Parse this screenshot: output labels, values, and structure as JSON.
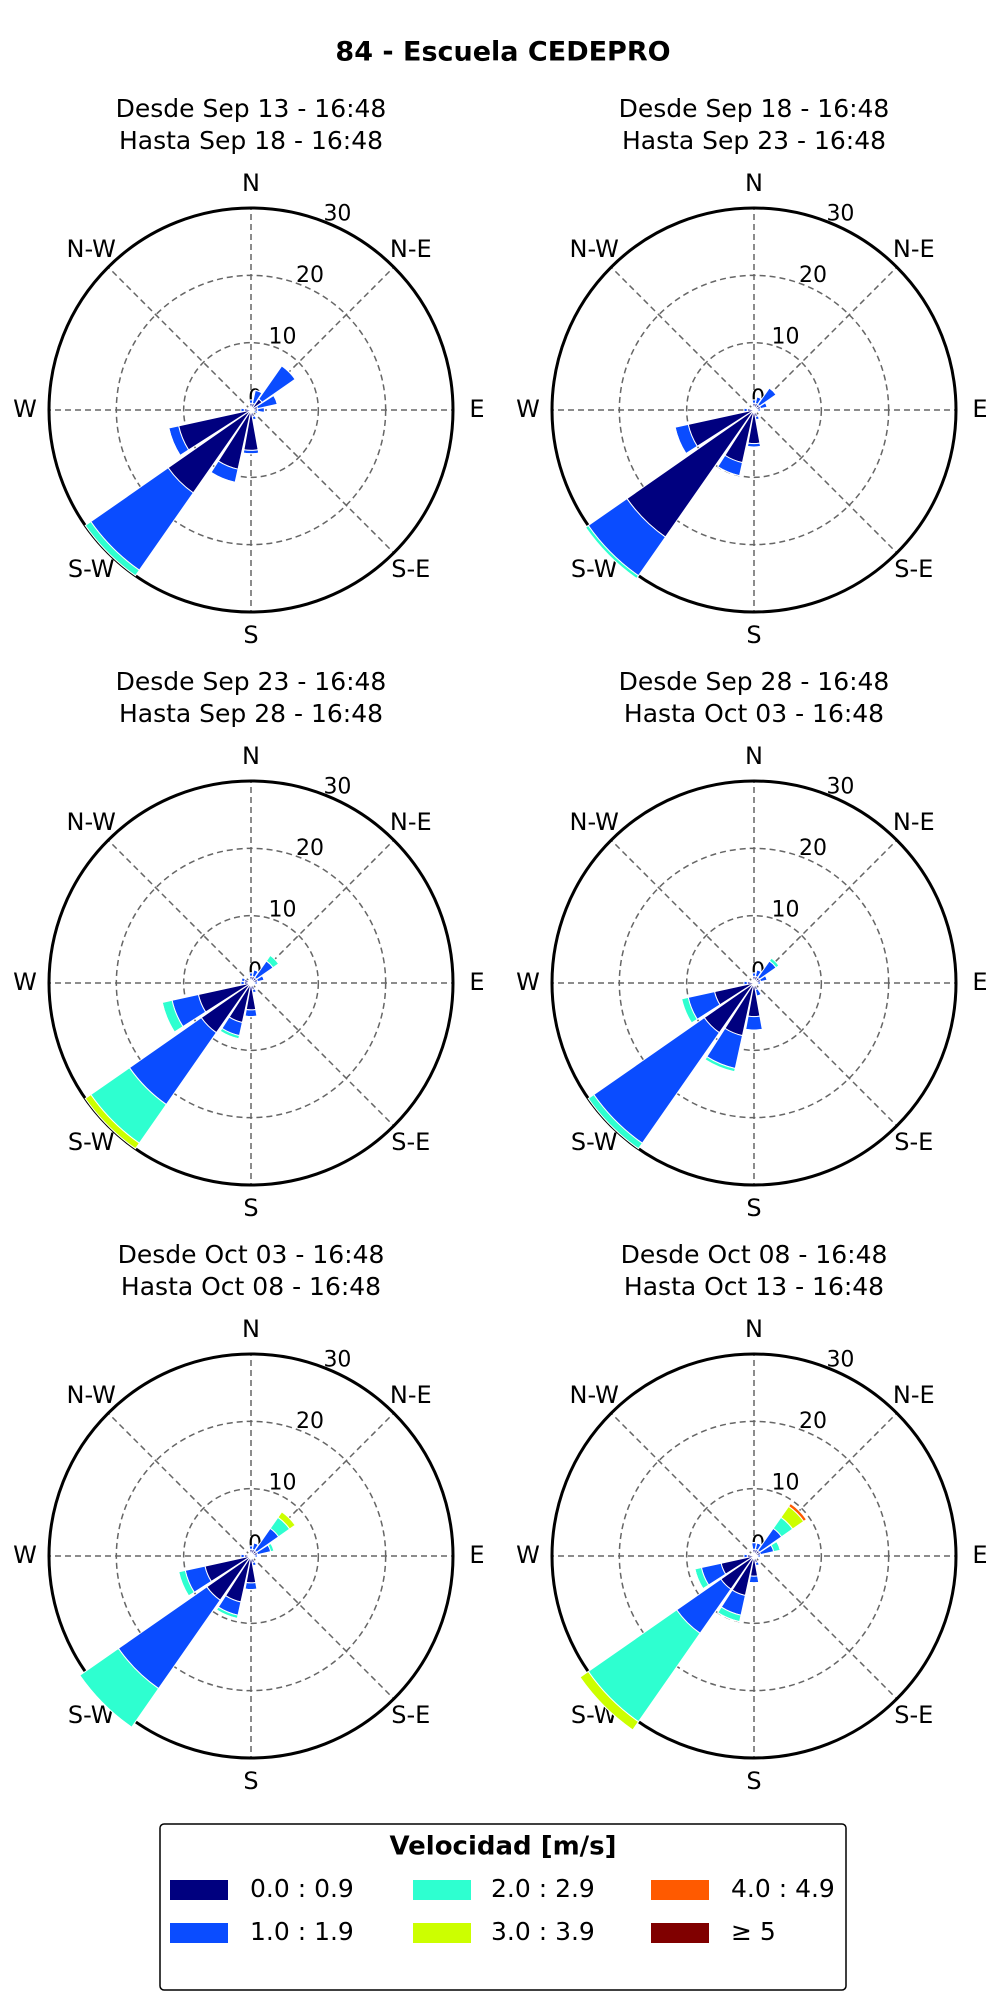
{
  "title": "84 - Escuela CEDEPRO",
  "legend": {
    "title": "Velocidad [m/s]",
    "items": [
      {
        "name": "0.0 : 0.9",
        "color": "#00007f"
      },
      {
        "name": "1.0 : 1.9",
        "color": "#0a4cff"
      },
      {
        "name": "2.0 : 2.9",
        "color": "#2effd0"
      },
      {
        "name": "3.0 : 3.9",
        "color": "#ccff00"
      },
      {
        "name": "4.0 : 4.9",
        "color": "#ff5a00"
      },
      {
        "name": "≥ 5",
        "color": "#800000"
      }
    ]
  },
  "chart_data": [
    {
      "type": "windrose",
      "title": [
        "Desde Sep 13 - 16:48",
        "Hasta Sep 18 - 16:48"
      ],
      "categories": [
        "N",
        null,
        "N-E",
        null,
        "E",
        null,
        "S-E",
        null,
        "S",
        null,
        "S-W",
        null,
        "W",
        null,
        "N-W",
        null
      ],
      "rlim": [
        0,
        30
      ],
      "rticks": [
        0,
        10,
        20,
        30
      ],
      "grid": true,
      "series": [
        {
          "values": [
            1,
            1,
            2,
            1,
            1,
            0.5,
            0.5,
            1,
            6,
            9,
            15,
            11,
            1,
            0.5,
            0.5,
            0.5
          ]
        },
        {
          "values": [
            0.5,
            2,
            6,
            3,
            1,
            0.5,
            0,
            0.5,
            0.5,
            2,
            14,
            1.5,
            0.5,
            0,
            0,
            0
          ]
        },
        {
          "values": [
            0,
            0,
            0,
            0,
            0,
            0,
            0,
            0,
            0,
            0,
            1,
            0,
            0,
            0,
            0,
            0
          ]
        }
      ]
    },
    {
      "type": "windrose",
      "title": [
        "Desde Sep 18 - 16:48",
        "Hasta Sep 23 - 16:48"
      ],
      "categories": [
        "N",
        null,
        "N-E",
        null,
        "E",
        null,
        "S-E",
        null,
        "S",
        null,
        "S-W",
        null,
        "W",
        null,
        "N-W",
        null
      ],
      "rlim": [
        0,
        30
      ],
      "rticks": [
        0,
        10,
        20,
        30
      ],
      "grid": true,
      "series": [
        {
          "values": [
            1,
            1,
            1,
            1,
            0.5,
            0.5,
            0.5,
            1,
            5,
            8,
            23,
            10,
            1,
            0.5,
            0.5,
            0.5
          ]
        },
        {
          "values": [
            0.5,
            1,
            3,
            1,
            0.5,
            0,
            0,
            0.5,
            0.5,
            2,
            7,
            2,
            0.5,
            0,
            0,
            0
          ]
        },
        {
          "values": [
            0,
            0,
            0,
            0,
            0,
            0,
            0,
            0,
            0,
            0,
            0.5,
            0,
            0,
            0,
            0,
            0
          ]
        }
      ]
    },
    {
      "type": "windrose",
      "title": [
        "Desde Sep 23 - 16:48",
        "Hasta Sep 28 - 16:48"
      ],
      "categories": [
        "N",
        null,
        "N-E",
        null,
        "E",
        null,
        "S-E",
        null,
        "S",
        null,
        "S-W",
        null,
        "W",
        null,
        "N-W",
        null
      ],
      "rlim": [
        0,
        30
      ],
      "rticks": [
        0,
        10,
        20,
        30
      ],
      "grid": true,
      "series": [
        {
          "values": [
            1,
            1,
            1,
            1,
            0.5,
            0.5,
            0.5,
            1,
            4,
            6,
            9,
            8,
            1,
            1,
            0.5,
            0.5
          ]
        },
        {
          "values": [
            0.5,
            1,
            3,
            1,
            0.5,
            0,
            0,
            0.5,
            1,
            2,
            13,
            4,
            0.5,
            0.5,
            0,
            0
          ]
        },
        {
          "values": [
            0,
            0,
            1,
            0,
            0,
            0,
            0,
            0,
            0,
            0.5,
            7,
            1.5,
            0,
            0,
            0,
            0
          ]
        },
        {
          "values": [
            0,
            0,
            0,
            0,
            0,
            0,
            0,
            0,
            0,
            0,
            1,
            0,
            0,
            0,
            0,
            0
          ]
        }
      ]
    },
    {
      "type": "windrose",
      "title": [
        "Desde Sep 28 - 16:48",
        "Hasta Oct 03 - 16:48"
      ],
      "categories": [
        "N",
        null,
        "N-E",
        null,
        "E",
        null,
        "S-E",
        null,
        "S",
        null,
        "S-W",
        null,
        "W",
        null,
        "N-W",
        null
      ],
      "rlim": [
        0,
        30
      ],
      "rticks": [
        0,
        10,
        20,
        30
      ],
      "grid": true,
      "series": [
        {
          "values": [
            1,
            1,
            1,
            1,
            0.5,
            0.5,
            0.5,
            1,
            5,
            8,
            9,
            6,
            1,
            0.5,
            0.5,
            0.5
          ]
        },
        {
          "values": [
            0.5,
            1,
            3,
            1,
            0.5,
            0,
            0,
            1,
            2,
            5,
            20,
            4,
            0.5,
            0,
            0,
            0
          ]
        },
        {
          "values": [
            0,
            0,
            0.5,
            0,
            0,
            0,
            0,
            0,
            0,
            0.5,
            1,
            1,
            0,
            0,
            0,
            0
          ]
        }
      ]
    },
    {
      "type": "windrose",
      "title": [
        "Desde Oct 03 - 16:48",
        "Hasta Oct 08 - 16:48"
      ],
      "categories": [
        "N",
        null,
        "N-E",
        null,
        "E",
        null,
        "S-E",
        null,
        "S",
        null,
        "S-W",
        null,
        "W",
        null,
        "N-W",
        null
      ],
      "rlim": [
        0,
        30
      ],
      "rticks": [
        0,
        10,
        20,
        30
      ],
      "grid": true,
      "series": [
        {
          "values": [
            1,
            1,
            1,
            1,
            0.5,
            0.5,
            0.5,
            1,
            4,
            7,
            8,
            7,
            1,
            0.5,
            0.5,
            0.5
          ]
        },
        {
          "values": [
            0.5,
            1,
            4,
            2,
            0.5,
            0,
            0,
            0.5,
            1,
            2,
            16,
            3,
            0.5,
            0,
            0,
            0
          ]
        },
        {
          "values": [
            0,
            0,
            2,
            0.5,
            0,
            0,
            0,
            0,
            0,
            0.5,
            7,
            1,
            0,
            0,
            0,
            0
          ]
        },
        {
          "values": [
            0,
            0,
            1,
            0,
            0,
            0,
            0,
            0,
            0,
            0,
            0,
            0,
            0,
            0,
            0,
            0
          ]
        }
      ]
    },
    {
      "type": "windrose",
      "title": [
        "Desde Oct 08 - 16:48",
        "Hasta Oct 13 - 16:48"
      ],
      "categories": [
        "N",
        null,
        "N-E",
        null,
        "E",
        null,
        "S-E",
        null,
        "S",
        null,
        "S-W",
        null,
        "W",
        null,
        "N-W",
        null
      ],
      "rlim": [
        0,
        30
      ],
      "rticks": [
        0,
        10,
        20,
        30
      ],
      "grid": true,
      "series": [
        {
          "values": [
            1,
            1,
            1,
            1,
            0.5,
            0.5,
            0.5,
            1,
            3,
            6,
            6,
            5,
            1,
            0.5,
            0.5,
            0.5
          ]
        },
        {
          "values": [
            1,
            1,
            4,
            2,
            0.5,
            0,
            0,
            0.5,
            1,
            3,
            8,
            3,
            0.5,
            0,
            0,
            0
          ]
        },
        {
          "values": [
            0,
            0,
            2,
            1,
            0,
            0,
            0,
            0,
            0,
            1,
            16,
            1,
            0,
            0,
            0,
            0
          ]
        },
        {
          "values": [
            0,
            0,
            2,
            0,
            0,
            0,
            0,
            0,
            0,
            0,
            1.5,
            0,
            0,
            0,
            0,
            0
          ]
        },
        {
          "values": [
            0,
            0,
            0.5,
            0,
            0,
            0,
            0,
            0,
            0,
            0,
            0,
            0,
            0,
            0,
            0,
            0
          ]
        }
      ]
    }
  ]
}
